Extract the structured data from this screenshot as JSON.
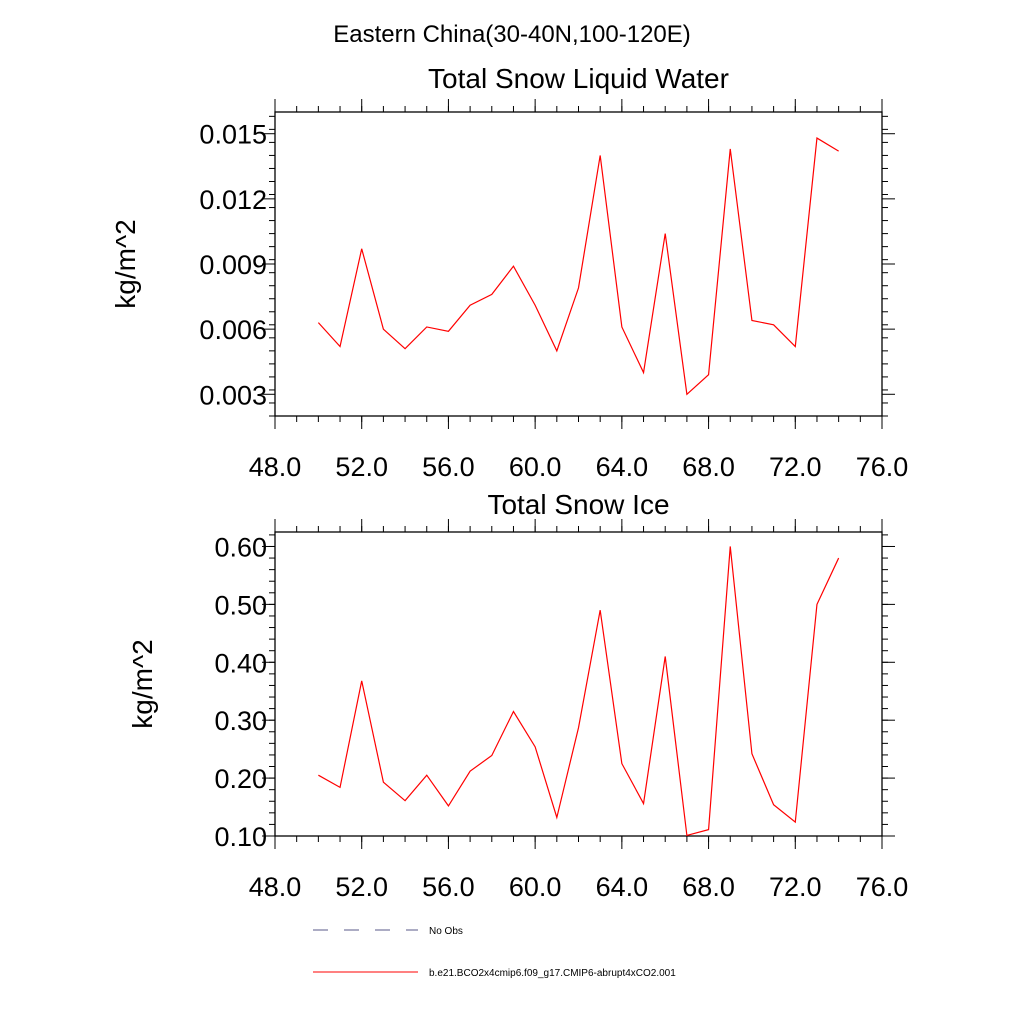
{
  "figure": {
    "suptitle": "Eastern China(30-40N,100-120E)"
  },
  "chart_data": [
    {
      "type": "line",
      "title": "Total Snow Liquid Water",
      "xlabel": "",
      "ylabel": "kg/m^2",
      "xlim": [
        48,
        76
      ],
      "ylim": [
        0.002,
        0.016
      ],
      "x_ticks": [
        48,
        52,
        56,
        60,
        64,
        68,
        72,
        76
      ],
      "x_tick_labels": [
        "48.0",
        "52.0",
        "56.0",
        "60.0",
        "64.0",
        "68.0",
        "72.0",
        "76.0"
      ],
      "y_ticks": [
        0.003,
        0.006,
        0.009,
        0.012,
        0.015
      ],
      "y_tick_labels": [
        "0.003",
        "0.006",
        "0.009",
        "0.012",
        "0.015"
      ],
      "x_minor_step": 1,
      "y_minor_step": 0.0006,
      "grid": false,
      "series": [
        {
          "name": "b.e21.BCO2x4cmip6.f09_g17.CMIP6-abrupt4xCO2.001",
          "color": "#ff0000",
          "x": [
            50,
            51,
            52,
            53,
            54,
            55,
            56,
            57,
            58,
            59,
            60,
            61,
            62,
            63,
            64,
            65,
            66,
            67,
            68,
            69,
            70,
            71,
            72,
            73,
            74
          ],
          "y": [
            0.0063,
            0.0052,
            0.0097,
            0.006,
            0.0051,
            0.0061,
            0.0059,
            0.0071,
            0.0076,
            0.0089,
            0.0071,
            0.005,
            0.0079,
            0.014,
            0.0061,
            0.004,
            0.0104,
            0.003,
            0.0039,
            0.0143,
            0.0064,
            0.0062,
            0.0052,
            0.0148,
            0.0142
          ]
        }
      ]
    },
    {
      "type": "line",
      "title": "Total Snow Ice",
      "xlabel": "",
      "ylabel": "kg/m^2",
      "xlim": [
        48,
        76
      ],
      "ylim": [
        0.1,
        0.625
      ],
      "x_ticks": [
        48,
        52,
        56,
        60,
        64,
        68,
        72,
        76
      ],
      "x_tick_labels": [
        "48.0",
        "52.0",
        "56.0",
        "60.0",
        "64.0",
        "68.0",
        "72.0",
        "76.0"
      ],
      "y_ticks": [
        0.1,
        0.2,
        0.3,
        0.4,
        0.5,
        0.6
      ],
      "y_tick_labels": [
        "0.10",
        "0.20",
        "0.30",
        "0.40",
        "0.50",
        "0.60"
      ],
      "x_minor_step": 1,
      "y_minor_step": 0.02,
      "grid": false,
      "series": [
        {
          "name": "b.e21.BCO2x4cmip6.f09_g17.CMIP6-abrupt4xCO2.001",
          "color": "#ff0000",
          "x": [
            50,
            51,
            52,
            53,
            54,
            55,
            56,
            57,
            58,
            59,
            60,
            61,
            62,
            63,
            64,
            65,
            66,
            67,
            68,
            69,
            70,
            71,
            72,
            73,
            74
          ],
          "y": [
            0.205,
            0.184,
            0.368,
            0.193,
            0.161,
            0.205,
            0.152,
            0.212,
            0.239,
            0.315,
            0.254,
            0.132,
            0.287,
            0.49,
            0.225,
            0.156,
            0.41,
            0.101,
            0.111,
            0.6,
            0.242,
            0.154,
            0.124,
            0.5,
            0.58
          ]
        }
      ]
    }
  ],
  "legend": {
    "placement": "bottom-left",
    "items": [
      {
        "label": "No Obs",
        "color": "#5a5a8a",
        "style": "dashed"
      },
      {
        "label": "b.e21.BCO2x4cmip6.f09_g17.CMIP6-abrupt4xCO2.001",
        "color": "#ff0000",
        "style": "solid"
      }
    ]
  }
}
